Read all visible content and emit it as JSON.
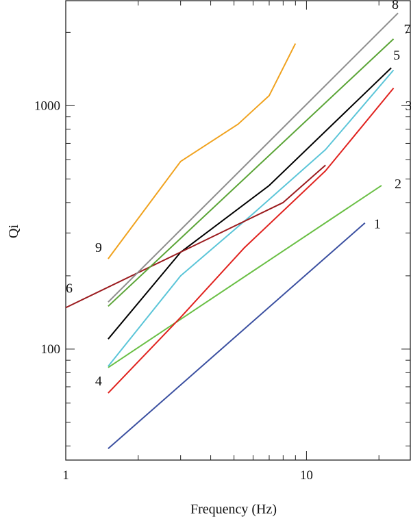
{
  "chart_data": {
    "type": "line",
    "title": "",
    "xlabel": "Frequency (Hz)",
    "ylabel": "Qi",
    "xscale": "log",
    "yscale": "log",
    "xlim": [
      1,
      27
    ],
    "ylim": [
      35,
      2700
    ],
    "grid": false,
    "x_ticks": [
      {
        "value": 1,
        "label": "1"
      },
      {
        "value": 10,
        "label": "10"
      }
    ],
    "x_minor_ticks": [
      2,
      3,
      4,
      5,
      6,
      7,
      8,
      9,
      20
    ],
    "y_ticks": [
      {
        "value": 100,
        "label": "100"
      },
      {
        "value": 1000,
        "label": "1000"
      }
    ],
    "y_minor_ticks": [
      40,
      50,
      60,
      70,
      80,
      90,
      200,
      300,
      400,
      500,
      600,
      700,
      800,
      900,
      2000
    ],
    "series": [
      {
        "name": "1",
        "color": "#3a4fa0",
        "points": [
          [
            1.5,
            39
          ],
          [
            17.5,
            330
          ]
        ]
      },
      {
        "name": "2",
        "color": "#6abf45",
        "points": [
          [
            1.5,
            84
          ],
          [
            20.5,
            470
          ]
        ]
      },
      {
        "name": "3",
        "color": "#e0221e",
        "points": [
          [
            1.5,
            66
          ],
          [
            3,
            135
          ],
          [
            5.5,
            260
          ],
          [
            12,
            540
          ],
          [
            23,
            1180
          ]
        ]
      },
      {
        "name": "4",
        "color": "#5bc5d8",
        "points": [
          [
            1.5,
            85
          ],
          [
            3,
            200
          ],
          [
            6,
            360
          ],
          [
            12,
            660
          ],
          [
            23,
            1400
          ]
        ]
      },
      {
        "name": "5",
        "color": "#000000",
        "points": [
          [
            1.5,
            110
          ],
          [
            3,
            250
          ],
          [
            7,
            470
          ],
          [
            22.5,
            1430
          ]
        ]
      },
      {
        "name": "6",
        "color": "#9b1b1e",
        "points": [
          [
            1,
            148
          ],
          [
            8,
            400
          ],
          [
            12,
            570
          ]
        ]
      },
      {
        "name": "7",
        "color": "#5aa436",
        "points": [
          [
            1.5,
            150
          ],
          [
            23,
            1880
          ]
        ]
      },
      {
        "name": "8",
        "color": "#8c8c8c",
        "points": [
          [
            1.5,
            156
          ],
          [
            24,
            2400
          ]
        ]
      },
      {
        "name": "9",
        "color": "#f0a21e",
        "points": [
          [
            1.5,
            235
          ],
          [
            3,
            590
          ],
          [
            5.2,
            840
          ],
          [
            7,
            1100
          ],
          [
            9,
            1800
          ]
        ]
      }
    ]
  }
}
